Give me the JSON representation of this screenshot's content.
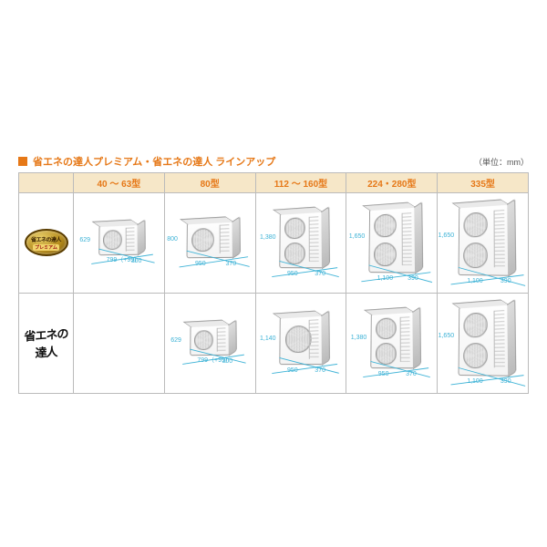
{
  "title": "省エネの達人プレミアム・省エネの達人 ラインアップ",
  "unit_note": "（単位：mm）",
  "accent_color": "#e67817",
  "header_bg": "#f6e7c8",
  "dim_color": "#3cb2d6",
  "border_color": "#bbbbbb",
  "columns": [
    {
      "label": "40 ～ 63型"
    },
    {
      "label": "80型"
    },
    {
      "label": "112 ～ 160型"
    },
    {
      "label": "224・280型"
    },
    {
      "label": "335型"
    }
  ],
  "rows": [
    {
      "series_name": "省エネの達人プレミアム",
      "series_badge": {
        "line1": "省エネの達人",
        "line2": "プレミアム"
      },
      "cells": [
        {
          "present": true,
          "size": "s",
          "fans": 1,
          "h": "629",
          "w": "799（+99）",
          "d": "300"
        },
        {
          "present": true,
          "size": "m",
          "fans": 1,
          "h": "800",
          "w": "950",
          "d": "370"
        },
        {
          "present": true,
          "size": "t1",
          "fans": 2,
          "h": "1,380",
          "w": "950",
          "d": "370"
        },
        {
          "present": true,
          "size": "t2",
          "fans": 2,
          "h": "1,650",
          "w": "1,100",
          "d": "390"
        },
        {
          "present": true,
          "size": "t3",
          "fans": 2,
          "h": "1,650",
          "w": "1,100",
          "d": "390"
        }
      ]
    },
    {
      "series_name": "省エネの達人",
      "series_brush": "省エネの達人",
      "cells": [
        {
          "present": false
        },
        {
          "present": true,
          "size": "s",
          "fans": 1,
          "h": "629",
          "w": "799（+99）",
          "d": "300"
        },
        {
          "present": true,
          "size": "l1",
          "fans": 1,
          "h": "1,140",
          "w": "950",
          "d": "370"
        },
        {
          "present": true,
          "size": "t1",
          "fans": 2,
          "h": "1,380",
          "w": "950",
          "d": "370"
        },
        {
          "present": true,
          "size": "t3",
          "fans": 2,
          "h": "1,650",
          "w": "1,100",
          "d": "390"
        }
      ]
    }
  ]
}
